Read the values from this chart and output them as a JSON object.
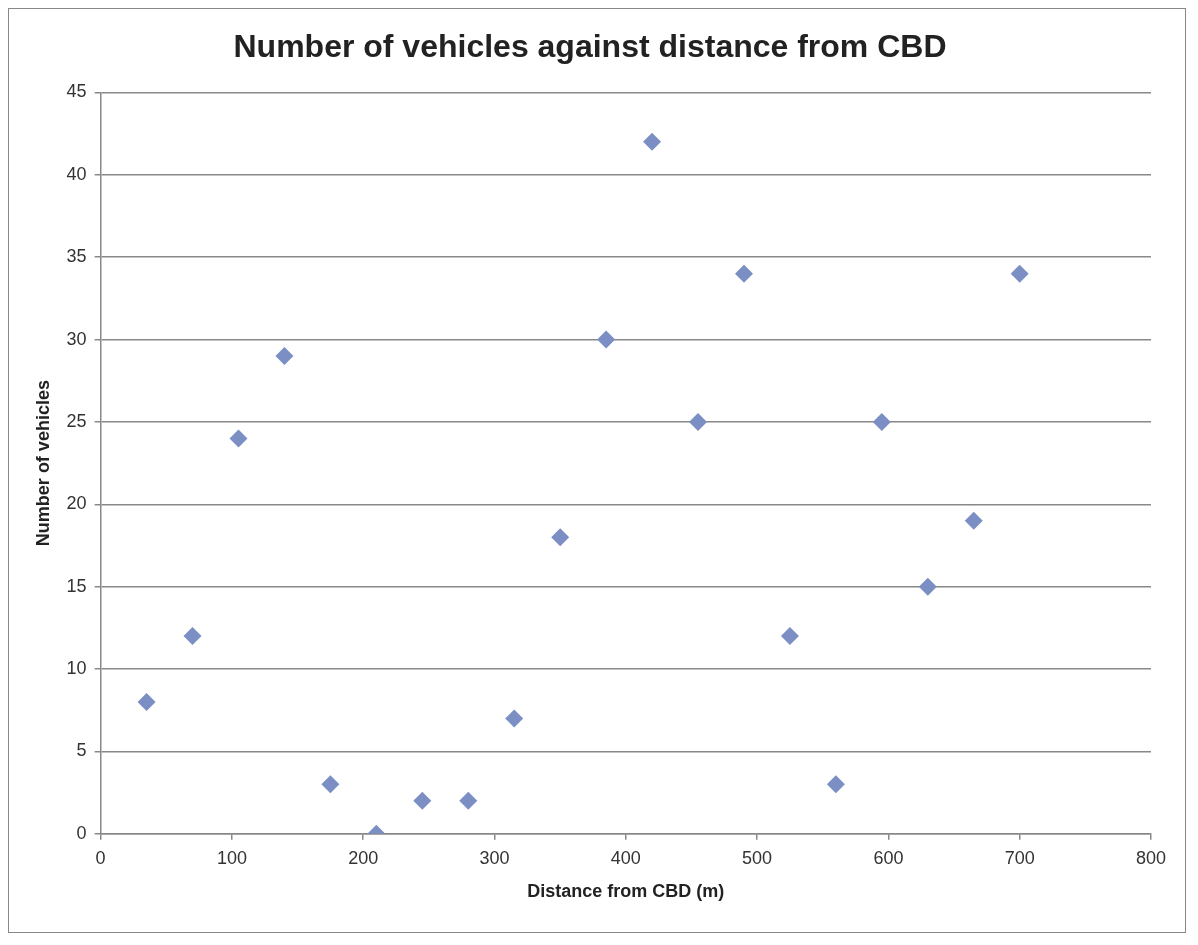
{
  "chart_data": {
    "type": "scatter",
    "title": "Number of vehicles against distance from CBD",
    "xlabel": "Distance from CBD (m)",
    "ylabel": "Number of vehicles",
    "x": [
      35,
      70,
      105,
      140,
      175,
      210,
      245,
      280,
      315,
      350,
      385,
      420,
      455,
      490,
      525,
      560,
      595,
      630,
      665,
      700
    ],
    "series": [
      {
        "color": "#7b8fc4",
        "values": [
          8,
          12,
          24,
          29,
          3,
          0,
          2,
          2,
          7,
          18,
          30,
          42,
          25,
          34,
          12,
          3,
          25,
          15,
          19,
          34
        ]
      }
    ],
    "xlim": [
      0,
      800
    ],
    "xticks": [
      0,
      100,
      200,
      300,
      400,
      500,
      600,
      700,
      800
    ],
    "ylim": [
      0,
      45
    ],
    "yticks": [
      0,
      5,
      10,
      15,
      20,
      25,
      30,
      35,
      40,
      45
    ],
    "grid": "y",
    "legend": false,
    "marker": "diamond"
  }
}
